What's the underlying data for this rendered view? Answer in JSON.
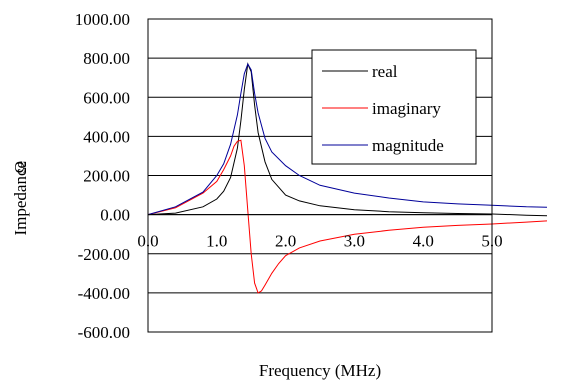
{
  "chart_data": {
    "type": "line",
    "xlabel": "Frequency (MHz)",
    "ylabel": "Impedance",
    "ylabel_symbol": "Ω",
    "xlim": [
      0,
      5.8
    ],
    "ylim": [
      -600,
      1000
    ],
    "y_ticks": [
      1000,
      800,
      600,
      400,
      200,
      0,
      -200,
      -400,
      -600
    ],
    "y_tick_labels": [
      "1000.00",
      "800.00",
      "600.00",
      "400.00",
      "200.00",
      "0.00",
      "-200.00",
      "-400.00",
      "-600.00"
    ],
    "x_ticks": [
      0,
      1,
      2,
      3,
      4,
      5
    ],
    "x_tick_labels": [
      "0.0",
      "1.0",
      "2.0",
      "3.0",
      "4.0",
      "5.0"
    ],
    "grid": "horizontal",
    "legend_position": "top-right",
    "series": [
      {
        "name": "real",
        "color": "#000000",
        "x": [
          0,
          0.4,
          0.8,
          1.0,
          1.1,
          1.2,
          1.3,
          1.35,
          1.4,
          1.45,
          1.5,
          1.55,
          1.6,
          1.7,
          1.8,
          2.0,
          2.2,
          2.5,
          3.0,
          3.5,
          4.0,
          4.5,
          5.0,
          5.5,
          5.8
        ],
        "y": [
          0,
          8,
          40,
          80,
          120,
          190,
          340,
          480,
          640,
          770,
          730,
          560,
          420,
          270,
          180,
          100,
          70,
          45,
          25,
          15,
          10,
          6,
          3,
          -3,
          -6
        ]
      },
      {
        "name": "imaginary",
        "color": "#ff0000",
        "x": [
          0,
          0.4,
          0.8,
          1.0,
          1.1,
          1.2,
          1.25,
          1.3,
          1.35,
          1.4,
          1.45,
          1.5,
          1.55,
          1.6,
          1.65,
          1.7,
          1.8,
          1.9,
          2.0,
          2.2,
          2.5,
          3.0,
          3.5,
          4.0,
          4.5,
          5.0,
          5.5,
          5.8
        ],
        "y": [
          0,
          35,
          110,
          170,
          230,
          300,
          350,
          375,
          380,
          250,
          20,
          -200,
          -350,
          -400,
          -390,
          -360,
          -300,
          -250,
          -210,
          -170,
          -135,
          -100,
          -80,
          -65,
          -55,
          -48,
          -38,
          -32
        ]
      },
      {
        "name": "magnitude",
        "color": "#000099",
        "x": [
          0,
          0.4,
          0.8,
          1.0,
          1.1,
          1.2,
          1.3,
          1.35,
          1.4,
          1.45,
          1.5,
          1.55,
          1.6,
          1.7,
          1.8,
          2.0,
          2.2,
          2.5,
          3.0,
          3.5,
          4.0,
          4.5,
          5.0,
          5.5,
          5.8
        ],
        "y": [
          0,
          40,
          115,
          200,
          260,
          360,
          510,
          620,
          720,
          770,
          740,
          620,
          520,
          390,
          320,
          250,
          200,
          150,
          110,
          85,
          65,
          55,
          48,
          40,
          38
        ]
      }
    ]
  }
}
